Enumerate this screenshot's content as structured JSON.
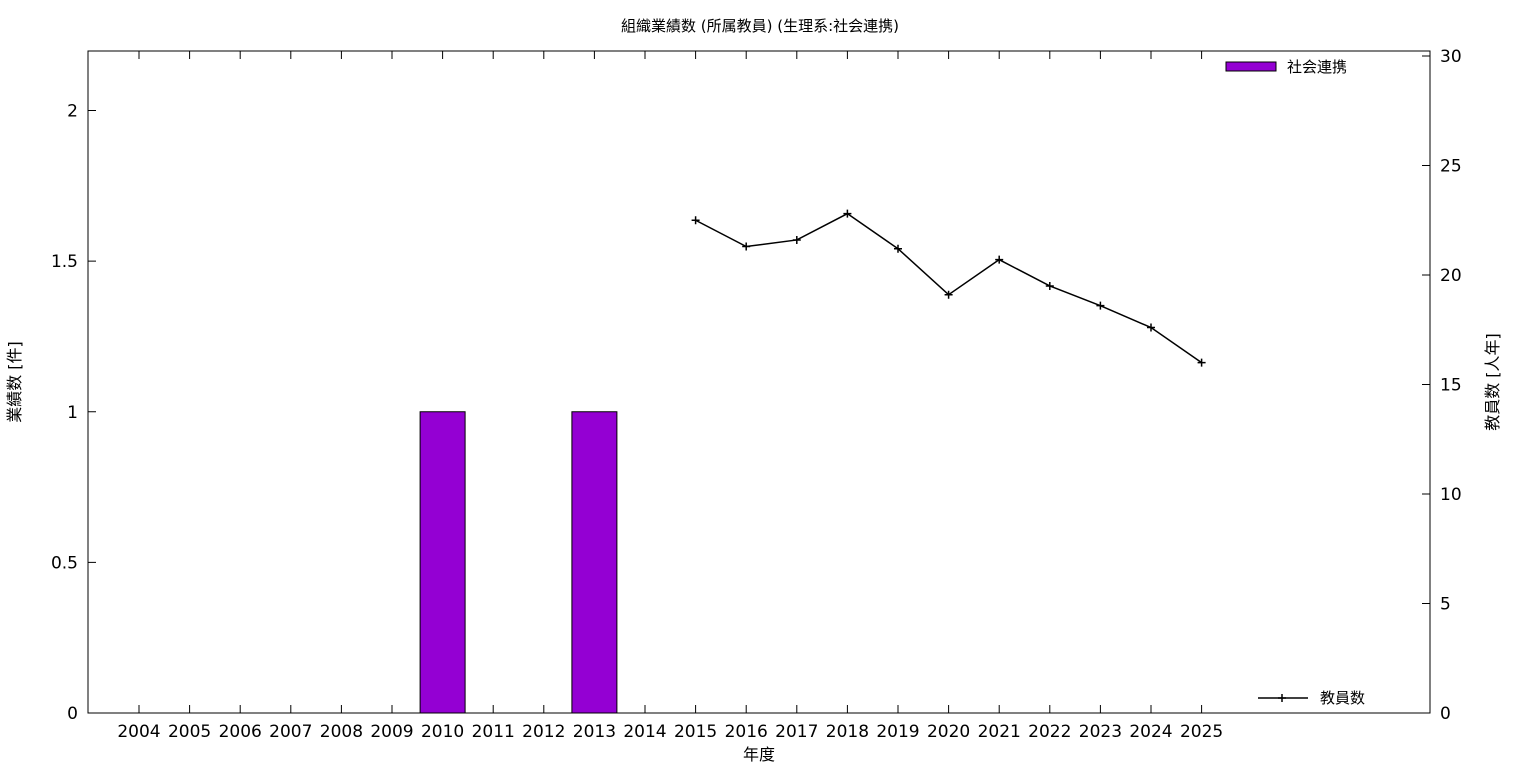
{
  "chart_data": {
    "type": "bar",
    "title": "組織業績数 (所属教員) (生理系:社会連携)",
    "xlabel": "年度",
    "ylabel": "業績数 [件]",
    "y2label": "教員数 [人年]",
    "categories": [
      "2004",
      "2005",
      "2006",
      "2007",
      "2008",
      "2009",
      "2010",
      "2011",
      "2012",
      "2013",
      "2014",
      "2015",
      "2016",
      "2017",
      "2018",
      "2019",
      "2020",
      "2021",
      "2022",
      "2023",
      "2024",
      "2025"
    ],
    "ylim": [
      0,
      2.2
    ],
    "yticks": [
      "0",
      "0.5",
      "1",
      "1.5",
      "2"
    ],
    "y2lim": [
      0,
      30
    ],
    "y2ticks": [
      "0",
      "5",
      "10",
      "15",
      "20",
      "25",
      "30"
    ],
    "series": [
      {
        "name": "社会連携",
        "kind": "bar",
        "axis": "left",
        "color": "#9400d3",
        "values": [
          0,
          0,
          0,
          0,
          0,
          0,
          1,
          0,
          0,
          1,
          0,
          0,
          0,
          0,
          0,
          0,
          0,
          0,
          0,
          0,
          0,
          0
        ]
      },
      {
        "name": "教員数",
        "kind": "line",
        "axis": "right",
        "color": "#000000",
        "values": [
          null,
          null,
          null,
          null,
          null,
          null,
          null,
          null,
          null,
          null,
          null,
          22.5,
          21.3,
          21.6,
          22.8,
          21.2,
          19.1,
          20.7,
          19.5,
          18.6,
          17.6,
          16.0
        ]
      }
    ],
    "legend": {
      "bar_position": "top-right",
      "line_position": "bottom-right"
    },
    "grid": false
  }
}
